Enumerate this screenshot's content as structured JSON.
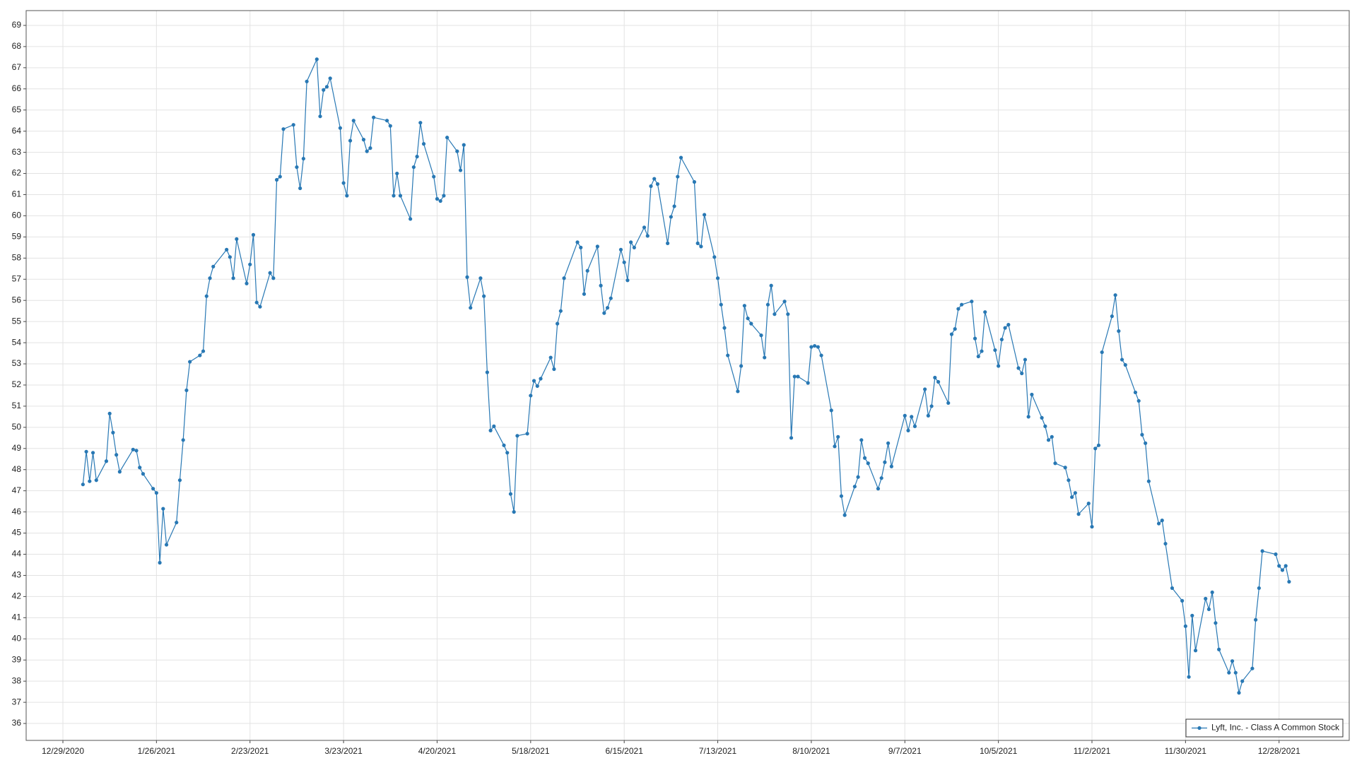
{
  "chart_data": {
    "type": "line",
    "x": [
      "1/4/2021",
      "1/5/2021",
      "1/6/2021",
      "1/7/2021",
      "1/8/2021",
      "1/11/2021",
      "1/12/2021",
      "1/13/2021",
      "1/14/2021",
      "1/15/2021",
      "1/19/2021",
      "1/20/2021",
      "1/21/2021",
      "1/22/2021",
      "1/25/2021",
      "1/26/2021",
      "1/27/2021",
      "1/28/2021",
      "1/29/2021",
      "2/1/2021",
      "2/2/2021",
      "2/3/2021",
      "2/4/2021",
      "2/5/2021",
      "2/8/2021",
      "2/9/2021",
      "2/10/2021",
      "2/11/2021",
      "2/12/2021",
      "2/16/2021",
      "2/17/2021",
      "2/18/2021",
      "2/19/2021",
      "2/22/2021",
      "2/23/2021",
      "2/24/2021",
      "2/25/2021",
      "2/26/2021",
      "3/1/2021",
      "3/2/2021",
      "3/3/2021",
      "3/4/2021",
      "3/5/2021",
      "3/8/2021",
      "3/9/2021",
      "3/10/2021",
      "3/11/2021",
      "3/12/2021",
      "3/15/2021",
      "3/16/2021",
      "3/17/2021",
      "3/18/2021",
      "3/19/2021",
      "3/22/2021",
      "3/23/2021",
      "3/24/2021",
      "3/25/2021",
      "3/26/2021",
      "3/29/2021",
      "3/30/2021",
      "3/31/2021",
      "4/1/2021",
      "4/5/2021",
      "4/6/2021",
      "4/7/2021",
      "4/8/2021",
      "4/9/2021",
      "4/12/2021",
      "4/13/2021",
      "4/14/2021",
      "4/15/2021",
      "4/16/2021",
      "4/19/2021",
      "4/20/2021",
      "4/21/2021",
      "4/22/2021",
      "4/23/2021",
      "4/26/2021",
      "4/27/2021",
      "4/28/2021",
      "4/29/2021",
      "4/30/2021",
      "5/3/2021",
      "5/4/2021",
      "5/5/2021",
      "5/6/2021",
      "5/7/2021",
      "5/10/2021",
      "5/11/2021",
      "5/12/2021",
      "5/13/2021",
      "5/14/2021",
      "5/17/2021",
      "5/18/2021",
      "5/19/2021",
      "5/20/2021",
      "5/21/2021",
      "5/24/2021",
      "5/25/2021",
      "5/26/2021",
      "5/27/2021",
      "5/28/2021",
      "6/1/2021",
      "6/2/2021",
      "6/3/2021",
      "6/4/2021",
      "6/7/2021",
      "6/8/2021",
      "6/9/2021",
      "6/10/2021",
      "6/11/2021",
      "6/14/2021",
      "6/15/2021",
      "6/16/2021",
      "6/17/2021",
      "6/18/2021",
      "6/21/2021",
      "6/22/2021",
      "6/23/2021",
      "6/24/2021",
      "6/25/2021",
      "6/28/2021",
      "6/29/2021",
      "6/30/2021",
      "7/1/2021",
      "7/2/2021",
      "7/6/2021",
      "7/7/2021",
      "7/8/2021",
      "7/9/2021",
      "7/12/2021",
      "7/13/2021",
      "7/14/2021",
      "7/15/2021",
      "7/16/2021",
      "7/19/2021",
      "7/20/2021",
      "7/21/2021",
      "7/22/2021",
      "7/23/2021",
      "7/26/2021",
      "7/27/2021",
      "7/28/2021",
      "7/29/2021",
      "7/30/2021",
      "8/2/2021",
      "8/3/2021",
      "8/4/2021",
      "8/5/2021",
      "8/6/2021",
      "8/9/2021",
      "8/10/2021",
      "8/11/2021",
      "8/12/2021",
      "8/13/2021",
      "8/16/2021",
      "8/17/2021",
      "8/18/2021",
      "8/19/2021",
      "8/20/2021",
      "8/23/2021",
      "8/24/2021",
      "8/25/2021",
      "8/26/2021",
      "8/27/2021",
      "8/30/2021",
      "8/31/2021",
      "9/1/2021",
      "9/2/2021",
      "9/3/2021",
      "9/7/2021",
      "9/8/2021",
      "9/9/2021",
      "9/10/2021",
      "9/13/2021",
      "9/14/2021",
      "9/15/2021",
      "9/16/2021",
      "9/17/2021",
      "9/20/2021",
      "9/21/2021",
      "9/22/2021",
      "9/23/2021",
      "9/24/2021",
      "9/27/2021",
      "9/28/2021",
      "9/29/2021",
      "9/30/2021",
      "10/1/2021",
      "10/4/2021",
      "10/5/2021",
      "10/6/2021",
      "10/7/2021",
      "10/8/2021",
      "10/11/2021",
      "10/12/2021",
      "10/13/2021",
      "10/14/2021",
      "10/15/2021",
      "10/18/2021",
      "10/19/2021",
      "10/20/2021",
      "10/21/2021",
      "10/22/2021",
      "10/25/2021",
      "10/26/2021",
      "10/27/2021",
      "10/28/2021",
      "10/29/2021",
      "11/1/2021",
      "11/2/2021",
      "11/3/2021",
      "11/4/2021",
      "11/5/2021",
      "11/8/2021",
      "11/9/2021",
      "11/10/2021",
      "11/11/2021",
      "11/12/2021",
      "11/15/2021",
      "11/16/2021",
      "11/17/2021",
      "11/18/2021",
      "11/19/2021",
      "11/22/2021",
      "11/23/2021",
      "11/24/2021",
      "11/26/2021",
      "11/29/2021",
      "11/30/2021",
      "12/1/2021",
      "12/2/2021",
      "12/3/2021",
      "12/6/2021",
      "12/7/2021",
      "12/8/2021",
      "12/9/2021",
      "12/10/2021",
      "12/13/2021",
      "12/14/2021",
      "12/15/2021",
      "12/16/2021",
      "12/17/2021",
      "12/20/2021",
      "12/21/2021",
      "12/22/2021",
      "12/23/2021",
      "12/27/2021",
      "12/28/2021",
      "12/29/2021",
      "12/30/2021",
      "12/31/2021"
    ],
    "series": [
      {
        "name": "Lyft, Inc. - Class A Common Stock",
        "color": "#2878b4",
        "values": [
          47.3,
          48.85,
          47.45,
          48.8,
          47.5,
          48.4,
          50.65,
          49.75,
          48.7,
          47.9,
          48.95,
          48.9,
          48.1,
          47.8,
          47.1,
          46.9,
          43.6,
          46.15,
          44.45,
          45.5,
          47.5,
          49.4,
          51.75,
          53.1,
          53.4,
          53.6,
          56.2,
          57.05,
          57.6,
          58.4,
          58.05,
          57.05,
          58.9,
          56.8,
          57.7,
          59.1,
          55.9,
          55.7,
          57.3,
          57.05,
          61.7,
          61.85,
          64.1,
          64.3,
          62.3,
          61.3,
          62.7,
          66.35,
          67.4,
          64.7,
          65.95,
          66.1,
          66.5,
          64.15,
          61.55,
          60.95,
          63.55,
          64.5,
          63.6,
          63.05,
          63.2,
          64.65,
          64.5,
          64.25,
          60.95,
          62,
          60.95,
          59.85,
          62.3,
          62.8,
          64.4,
          63.4,
          61.85,
          60.8,
          60.7,
          60.95,
          63.7,
          63.05,
          62.15,
          63.35,
          57.1,
          55.65,
          57.05,
          56.2,
          52.6,
          49.85,
          50.05,
          49.15,
          48.8,
          46.85,
          46,
          49.6,
          49.7,
          51.5,
          52.2,
          51.95,
          52.3,
          53.3,
          52.75,
          54.9,
          55.5,
          57.05,
          58.75,
          58.5,
          56.3,
          57.4,
          58.55,
          56.7,
          55.4,
          55.65,
          56.1,
          58.4,
          57.8,
          56.95,
          58.75,
          58.5,
          59.45,
          59.05,
          61.4,
          61.75,
          61.5,
          58.7,
          59.95,
          60.45,
          61.85,
          62.75,
          61.6,
          58.7,
          58.55,
          60.05,
          58.05,
          57.05,
          55.8,
          54.7,
          53.4,
          51.7,
          52.9,
          55.75,
          55.15,
          54.9,
          54.35,
          53.3,
          55.8,
          56.7,
          55.35,
          55.95,
          55.35,
          49.5,
          52.4,
          52.4,
          52.1,
          53.8,
          53.85,
          53.8,
          53.4,
          50.8,
          49.1,
          49.55,
          46.75,
          45.85,
          47.2,
          47.65,
          49.4,
          48.55,
          48.3,
          47.1,
          47.6,
          48.35,
          49.25,
          48.15,
          50.55,
          49.85,
          50.5,
          50.05,
          51.8,
          50.55,
          51.0,
          52.35,
          52.15,
          51.15,
          54.4,
          54.65,
          55.6,
          55.8,
          55.95,
          54.2,
          53.35,
          53.6,
          55.45,
          53.65,
          52.9,
          54.15,
          54.7,
          54.85,
          52.8,
          52.55,
          53.2,
          50.5,
          51.55,
          50.45,
          50.05,
          49.4,
          49.55,
          48.3,
          48.1,
          47.5,
          46.7,
          46.9,
          45.9,
          46.4,
          45.3,
          49.0,
          49.15,
          53.55,
          55.25,
          56.25,
          54.55,
          53.2,
          52.95,
          51.65,
          51.25,
          49.65,
          49.25,
          47.45,
          45.45,
          45.6,
          44.5,
          42.4,
          41.8,
          40.6,
          38.2,
          41.1,
          39.45,
          41.9,
          41.4,
          42.2,
          40.75,
          39.5,
          38.4,
          38.95,
          38.4,
          37.45,
          38.0,
          38.6,
          40.9,
          42.4,
          44.15,
          44.0,
          43.45,
          43.25,
          43.45,
          42.7
        ]
      }
    ],
    "xlim": [
      "12/18/2020",
      "1/18/2022"
    ],
    "xticks": [
      "12/29/2020",
      "1/26/2021",
      "2/23/2021",
      "3/23/2021",
      "4/20/2021",
      "5/18/2021",
      "6/15/2021",
      "7/13/2021",
      "8/10/2021",
      "9/7/2021",
      "10/5/2021",
      "11/2/2021",
      "11/30/2021",
      "12/28/2021"
    ],
    "ylim": [
      35.2,
      69.7
    ],
    "yticks": [
      36,
      37,
      38,
      39,
      40,
      41,
      42,
      43,
      44,
      45,
      46,
      47,
      48,
      49,
      50,
      51,
      52,
      53,
      54,
      55,
      56,
      57,
      58,
      59,
      60,
      61,
      62,
      63,
      64,
      65,
      66,
      67,
      68,
      69
    ],
    "grid": true,
    "legend": "lower right"
  }
}
